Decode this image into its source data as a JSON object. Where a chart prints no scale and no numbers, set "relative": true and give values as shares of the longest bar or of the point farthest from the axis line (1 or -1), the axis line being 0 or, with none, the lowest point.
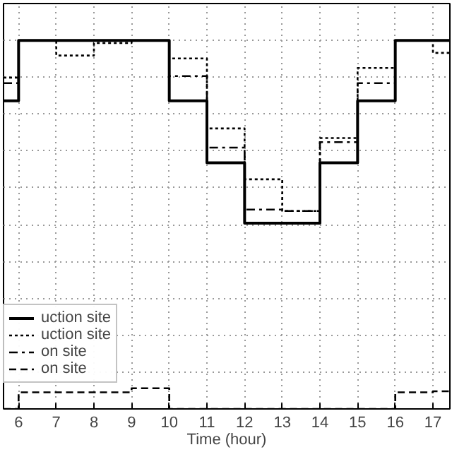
{
  "chart_data": {
    "type": "step",
    "xlabel": "Time (hour)",
    "relative": true,
    "x": [
      5.6,
      6,
      7,
      8,
      9,
      10,
      11,
      12,
      13,
      14,
      15,
      16,
      17,
      17.45
    ],
    "xlim": [
      5.6,
      17.45
    ],
    "xticks": [
      6,
      7,
      8,
      9,
      10,
      11,
      12,
      13,
      14,
      15,
      16,
      17
    ],
    "grid": true,
    "legend": "bottom left",
    "series": [
      {
        "name": "uction site",
        "color": "#000000",
        "line_style": "solid",
        "values": [
          0.836,
          1,
          1,
          1,
          1,
          0.836,
          0.668,
          0.504,
          0.504,
          0.668,
          0.836,
          1,
          1,
          1
        ]
      },
      {
        "name": "uction site",
        "color": "#000000",
        "line_style": "dotted",
        "values": [
          0.899,
          1,
          0.959,
          0.993,
          1,
          0.951,
          0.761,
          0.623,
          0.537,
          0.735,
          0.925,
          1,
          0.966,
          0.966
        ]
      },
      {
        "name": "on site",
        "color": "#000000",
        "line_style": "dashdot",
        "values": [
          0.884,
          1,
          1,
          1,
          1,
          0.903,
          0.709,
          0.541,
          0.537,
          0.724,
          0.884,
          1,
          1,
          1
        ]
      },
      {
        "name": "on site",
        "color": "#000000",
        "line_style": "dashed",
        "values": [
          0,
          0.045,
          0.045,
          0.045,
          0.056,
          0,
          0,
          0,
          0,
          0,
          0,
          0.045,
          0.048,
          0.048
        ]
      }
    ]
  }
}
